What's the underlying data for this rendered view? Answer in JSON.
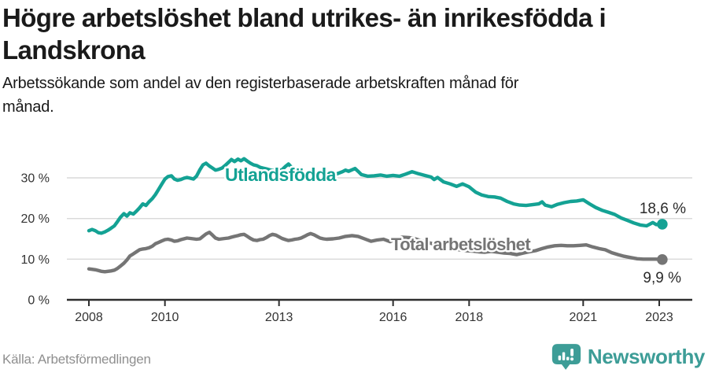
{
  "header": {
    "title_line1": "Högre arbetslöshet bland utrikes- än inrikesfödda i",
    "title_line2": "Landskrona",
    "subtitle_line1": "Arbetssökande som andel av den registerbaserade arbetskraften månad för",
    "subtitle_line2": "månad."
  },
  "footer": {
    "source": "Källa: Arbetsförmedlingen",
    "brand": "Newsworthy"
  },
  "colors": {
    "accent_teal": "#14a294",
    "line_gray": "#757575",
    "grid": "#d9d9d9",
    "axis": "#2e2e2e",
    "tick_text": "#333333",
    "annotation_text": "#2b2b2b",
    "logo_teal": "#3d9d97"
  },
  "chart_data": {
    "type": "line",
    "title": "Högre arbetslöshet bland utrikes- än inrikesfödda i Landskrona",
    "subtitle": "Arbetssökande som andel av den registerbaserade arbetskraften månad för månad.",
    "source": "Källa: Arbetsförmedlingen",
    "xlabel": "",
    "ylabel": "",
    "y_unit": "%",
    "grid": "horizontal",
    "legend_position": "inline-labels",
    "xlim": [
      2007.7,
      2023.6
    ],
    "ylim": [
      0,
      37
    ],
    "x_ticks": [
      {
        "label": "2008",
        "year": 2008
      },
      {
        "label": "2010",
        "year": 2010
      },
      {
        "label": "2013",
        "year": 2013
      },
      {
        "label": "2016",
        "year": 2016
      },
      {
        "label": "2018",
        "year": 2018
      },
      {
        "label": "2021",
        "year": 2021
      },
      {
        "label": "2023",
        "year": 2023
      }
    ],
    "y_ticks": [
      {
        "label": "0 %",
        "value": 0
      },
      {
        "label": "10 %",
        "value": 10
      },
      {
        "label": "20 %",
        "value": 20
      },
      {
        "label": "30 %",
        "value": 30
      }
    ],
    "series": [
      {
        "name": "Utlandsfödda",
        "color": "#14a294",
        "end_label": "18,6 %",
        "end_value": 18.6,
        "points": [
          [
            2008.0,
            17.0
          ],
          [
            2008.08,
            17.3
          ],
          [
            2008.17,
            17.0
          ],
          [
            2008.25,
            16.5
          ],
          [
            2008.33,
            16.4
          ],
          [
            2008.42,
            16.7
          ],
          [
            2008.5,
            17.1
          ],
          [
            2008.58,
            17.6
          ],
          [
            2008.67,
            18.2
          ],
          [
            2008.75,
            19.2
          ],
          [
            2008.83,
            20.3
          ],
          [
            2008.92,
            21.2
          ],
          [
            2009.0,
            20.6
          ],
          [
            2009.08,
            21.4
          ],
          [
            2009.17,
            21.1
          ],
          [
            2009.25,
            21.8
          ],
          [
            2009.33,
            22.6
          ],
          [
            2009.42,
            23.6
          ],
          [
            2009.5,
            23.2
          ],
          [
            2009.58,
            24.1
          ],
          [
            2009.67,
            24.9
          ],
          [
            2009.75,
            25.9
          ],
          [
            2009.83,
            27.1
          ],
          [
            2009.92,
            28.5
          ],
          [
            2010.0,
            29.7
          ],
          [
            2010.08,
            30.3
          ],
          [
            2010.17,
            30.5
          ],
          [
            2010.25,
            29.7
          ],
          [
            2010.33,
            29.4
          ],
          [
            2010.42,
            29.6
          ],
          [
            2010.5,
            29.9
          ],
          [
            2010.58,
            30.1
          ],
          [
            2010.67,
            29.9
          ],
          [
            2010.75,
            29.7
          ],
          [
            2010.83,
            30.4
          ],
          [
            2010.92,
            32.0
          ],
          [
            2011.0,
            33.2
          ],
          [
            2011.08,
            33.6
          ],
          [
            2011.17,
            32.9
          ],
          [
            2011.25,
            32.4
          ],
          [
            2011.33,
            31.9
          ],
          [
            2011.42,
            32.1
          ],
          [
            2011.5,
            32.4
          ],
          [
            2011.58,
            33.0
          ],
          [
            2011.67,
            33.8
          ],
          [
            2011.75,
            34.5
          ],
          [
            2011.83,
            34.0
          ],
          [
            2011.92,
            34.6
          ],
          [
            2012.0,
            34.2
          ],
          [
            2012.08,
            34.7
          ],
          [
            2012.17,
            34.1
          ],
          [
            2012.25,
            33.6
          ],
          [
            2012.33,
            33.2
          ],
          [
            2012.42,
            33.0
          ],
          [
            2012.5,
            32.6
          ],
          [
            2012.58,
            32.4
          ],
          [
            2012.67,
            32.2
          ],
          [
            2012.75,
            32.0
          ],
          [
            2012.83,
            31.8
          ],
          [
            2012.92,
            31.9
          ],
          [
            2013.0,
            31.8
          ],
          [
            2013.08,
            32.0
          ],
          [
            2013.17,
            32.8
          ],
          [
            2013.25,
            33.4
          ],
          [
            2013.33,
            32.6
          ],
          [
            2013.42,
            31.6
          ],
          [
            2013.5,
            31.2
          ],
          [
            2013.58,
            31.0
          ],
          [
            2013.67,
            30.8
          ],
          [
            2013.75,
            30.9
          ],
          [
            2013.83,
            30.6
          ],
          [
            2013.92,
            30.7
          ],
          [
            2014.0,
            30.5
          ],
          [
            2014.17,
            30.4
          ],
          [
            2014.33,
            30.6
          ],
          [
            2014.5,
            30.9
          ],
          [
            2014.67,
            31.5
          ],
          [
            2014.75,
            31.9
          ],
          [
            2014.83,
            31.6
          ],
          [
            2015.0,
            32.3
          ],
          [
            2015.08,
            31.6
          ],
          [
            2015.17,
            30.8
          ],
          [
            2015.33,
            30.4
          ],
          [
            2015.5,
            30.5
          ],
          [
            2015.67,
            30.7
          ],
          [
            2015.83,
            30.4
          ],
          [
            2016.0,
            30.6
          ],
          [
            2016.17,
            30.4
          ],
          [
            2016.33,
            30.9
          ],
          [
            2016.5,
            31.5
          ],
          [
            2016.67,
            31.0
          ],
          [
            2016.83,
            30.6
          ],
          [
            2017.0,
            30.2
          ],
          [
            2017.08,
            29.6
          ],
          [
            2017.17,
            30.1
          ],
          [
            2017.33,
            29.0
          ],
          [
            2017.5,
            28.5
          ],
          [
            2017.67,
            27.9
          ],
          [
            2017.83,
            28.5
          ],
          [
            2018.0,
            27.8
          ],
          [
            2018.17,
            26.5
          ],
          [
            2018.33,
            25.8
          ],
          [
            2018.5,
            25.4
          ],
          [
            2018.67,
            25.3
          ],
          [
            2018.83,
            25.0
          ],
          [
            2019.0,
            24.2
          ],
          [
            2019.17,
            23.6
          ],
          [
            2019.33,
            23.3
          ],
          [
            2019.5,
            23.2
          ],
          [
            2019.67,
            23.4
          ],
          [
            2019.83,
            23.6
          ],
          [
            2019.92,
            24.1
          ],
          [
            2020.0,
            23.3
          ],
          [
            2020.17,
            22.9
          ],
          [
            2020.33,
            23.5
          ],
          [
            2020.5,
            23.9
          ],
          [
            2020.67,
            24.2
          ],
          [
            2020.83,
            24.3
          ],
          [
            2021.0,
            24.6
          ],
          [
            2021.17,
            23.6
          ],
          [
            2021.33,
            22.7
          ],
          [
            2021.5,
            22.0
          ],
          [
            2021.67,
            21.5
          ],
          [
            2021.83,
            21.0
          ],
          [
            2022.0,
            20.1
          ],
          [
            2022.17,
            19.5
          ],
          [
            2022.33,
            18.9
          ],
          [
            2022.5,
            18.4
          ],
          [
            2022.67,
            18.2
          ],
          [
            2022.75,
            18.6
          ],
          [
            2022.83,
            19.0
          ],
          [
            2022.92,
            18.5
          ],
          [
            2023.08,
            18.6
          ]
        ]
      },
      {
        "name": "Total arbetslöshet",
        "color": "#757575",
        "end_label": "9,9 %",
        "end_value": 9.9,
        "points": [
          [
            2008.0,
            7.6
          ],
          [
            2008.08,
            7.5
          ],
          [
            2008.17,
            7.4
          ],
          [
            2008.25,
            7.2
          ],
          [
            2008.33,
            7.0
          ],
          [
            2008.42,
            6.9
          ],
          [
            2008.5,
            7.0
          ],
          [
            2008.58,
            7.1
          ],
          [
            2008.67,
            7.3
          ],
          [
            2008.75,
            7.7
          ],
          [
            2008.83,
            8.3
          ],
          [
            2008.92,
            9.0
          ],
          [
            2009.0,
            9.8
          ],
          [
            2009.08,
            10.8
          ],
          [
            2009.17,
            11.3
          ],
          [
            2009.25,
            11.8
          ],
          [
            2009.33,
            12.3
          ],
          [
            2009.42,
            12.5
          ],
          [
            2009.5,
            12.6
          ],
          [
            2009.58,
            12.8
          ],
          [
            2009.67,
            13.2
          ],
          [
            2009.75,
            13.8
          ],
          [
            2009.83,
            14.1
          ],
          [
            2009.92,
            14.5
          ],
          [
            2010.0,
            14.8
          ],
          [
            2010.08,
            14.9
          ],
          [
            2010.17,
            14.7
          ],
          [
            2010.25,
            14.4
          ],
          [
            2010.33,
            14.5
          ],
          [
            2010.42,
            14.8
          ],
          [
            2010.5,
            15.0
          ],
          [
            2010.58,
            15.2
          ],
          [
            2010.67,
            15.1
          ],
          [
            2010.75,
            15.0
          ],
          [
            2010.83,
            14.9
          ],
          [
            2010.92,
            15.0
          ],
          [
            2011.0,
            15.6
          ],
          [
            2011.08,
            16.2
          ],
          [
            2011.17,
            16.6
          ],
          [
            2011.25,
            15.9
          ],
          [
            2011.33,
            15.2
          ],
          [
            2011.42,
            14.9
          ],
          [
            2011.5,
            15.0
          ],
          [
            2011.58,
            15.1
          ],
          [
            2011.67,
            15.2
          ],
          [
            2011.75,
            15.4
          ],
          [
            2011.83,
            15.6
          ],
          [
            2011.92,
            15.8
          ],
          [
            2012.0,
            16.0
          ],
          [
            2012.08,
            16.1
          ],
          [
            2012.17,
            15.6
          ],
          [
            2012.25,
            15.1
          ],
          [
            2012.33,
            14.7
          ],
          [
            2012.42,
            14.6
          ],
          [
            2012.5,
            14.8
          ],
          [
            2012.58,
            14.9
          ],
          [
            2012.67,
            15.3
          ],
          [
            2012.75,
            15.8
          ],
          [
            2012.83,
            16.1
          ],
          [
            2012.92,
            15.9
          ],
          [
            2013.0,
            15.5
          ],
          [
            2013.08,
            15.1
          ],
          [
            2013.17,
            14.8
          ],
          [
            2013.25,
            14.6
          ],
          [
            2013.33,
            14.7
          ],
          [
            2013.42,
            14.9
          ],
          [
            2013.5,
            15.0
          ],
          [
            2013.58,
            15.2
          ],
          [
            2013.67,
            15.6
          ],
          [
            2013.75,
            16.0
          ],
          [
            2013.83,
            16.3
          ],
          [
            2013.92,
            16.0
          ],
          [
            2014.0,
            15.6
          ],
          [
            2014.08,
            15.2
          ],
          [
            2014.17,
            15.0
          ],
          [
            2014.25,
            14.9
          ],
          [
            2014.42,
            15.0
          ],
          [
            2014.58,
            15.2
          ],
          [
            2014.75,
            15.6
          ],
          [
            2014.92,
            15.8
          ],
          [
            2015.08,
            15.6
          ],
          [
            2015.25,
            15.0
          ],
          [
            2015.42,
            14.4
          ],
          [
            2015.58,
            14.7
          ],
          [
            2015.75,
            14.9
          ],
          [
            2015.92,
            14.3
          ],
          [
            2016.08,
            15.0
          ],
          [
            2016.25,
            15.4
          ],
          [
            2016.42,
            15.3
          ],
          [
            2016.58,
            15.0
          ],
          [
            2016.75,
            14.5
          ],
          [
            2016.92,
            14.1
          ],
          [
            2017.08,
            13.7
          ],
          [
            2017.25,
            13.3
          ],
          [
            2017.42,
            12.9
          ],
          [
            2017.58,
            12.6
          ],
          [
            2017.75,
            12.3
          ],
          [
            2017.92,
            12.1
          ],
          [
            2018.08,
            12.0
          ],
          [
            2018.25,
            11.8
          ],
          [
            2018.42,
            11.7
          ],
          [
            2018.58,
            11.9
          ],
          [
            2018.75,
            11.7
          ],
          [
            2018.92,
            11.5
          ],
          [
            2019.08,
            11.4
          ],
          [
            2019.25,
            11.1
          ],
          [
            2019.42,
            11.5
          ],
          [
            2019.58,
            11.8
          ],
          [
            2019.75,
            12.1
          ],
          [
            2019.92,
            12.6
          ],
          [
            2020.08,
            13.0
          ],
          [
            2020.25,
            13.3
          ],
          [
            2020.42,
            13.4
          ],
          [
            2020.58,
            13.3
          ],
          [
            2020.75,
            13.3
          ],
          [
            2020.92,
            13.4
          ],
          [
            2021.08,
            13.5
          ],
          [
            2021.25,
            13.0
          ],
          [
            2021.42,
            12.6
          ],
          [
            2021.58,
            12.3
          ],
          [
            2021.75,
            11.6
          ],
          [
            2021.92,
            11.1
          ],
          [
            2022.08,
            10.7
          ],
          [
            2022.25,
            10.4
          ],
          [
            2022.42,
            10.1
          ],
          [
            2022.58,
            10.0
          ],
          [
            2022.75,
            10.0
          ],
          [
            2022.92,
            10.0
          ],
          [
            2023.08,
            9.9
          ]
        ]
      }
    ]
  }
}
